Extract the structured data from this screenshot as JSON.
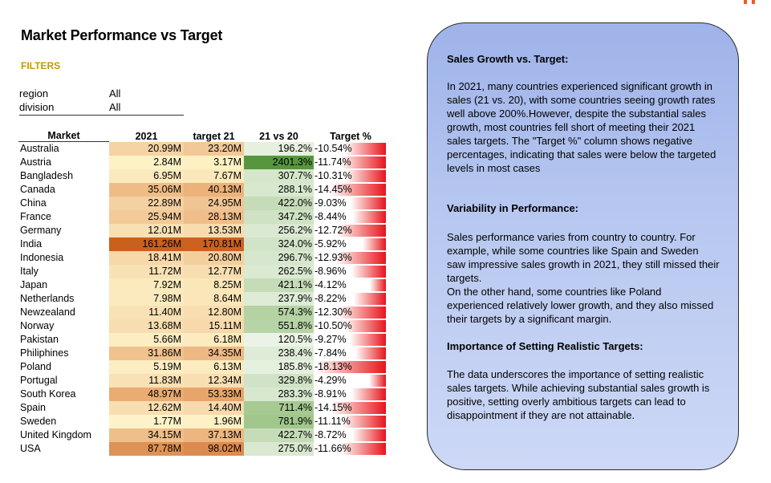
{
  "title": "Market Performance vs Target",
  "filters": {
    "label": "FILTERS",
    "items": [
      {
        "name": "region",
        "value": "All"
      },
      {
        "name": "division",
        "value": "All"
      }
    ]
  },
  "table": {
    "headers": [
      "Market",
      "2021",
      "target 21",
      "21 vs 20",
      "Target %"
    ],
    "rows": [
      {
        "market": "Australia",
        "y2021": "20.99M",
        "target": "23.20M",
        "yoy": "196.2%",
        "tpct": "-10.54%",
        "tfrac": -0.1054,
        "c1": "#f5d3a4",
        "c2": "#f2c898",
        "c3": "#e6f0df"
      },
      {
        "market": "Austria",
        "y2021": "2.84M",
        "target": "3.17M",
        "yoy": "2401.3%",
        "tpct": "-11.74%",
        "tfrac": -0.1174,
        "c1": "#fdf2c6",
        "c2": "#fdf0c2",
        "c3": "#57963f"
      },
      {
        "market": "Bangladesh",
        "y2021": "6.95M",
        "target": "7.67M",
        "yoy": "307.7%",
        "tpct": "-10.31%",
        "tfrac": -0.1031,
        "c1": "#fbeabe",
        "c2": "#fbe8ba",
        "c3": "#d5e6cb"
      },
      {
        "market": "Canada",
        "y2021": "35.06M",
        "target": "40.13M",
        "yoy": "288.1%",
        "tpct": "-14.45%",
        "tfrac": -0.1445,
        "c1": "#eebd87",
        "c2": "#ecb27a",
        "c3": "#d8e8cf"
      },
      {
        "market": "China",
        "y2021": "22.89M",
        "target": "24.95M",
        "yoy": "422.0%",
        "tpct": "-9.03%",
        "tfrac": -0.0903,
        "c1": "#f4d1a1",
        "c2": "#f1c593",
        "c3": "#c6dcb8"
      },
      {
        "market": "France",
        "y2021": "25.94M",
        "target": "28.13M",
        "yoy": "347.2%",
        "tpct": "-8.44%",
        "tfrac": -0.0844,
        "c1": "#f2ca98",
        "c2": "#efbe8b",
        "c3": "#cfe2c4"
      },
      {
        "market": "Germany",
        "y2021": "12.01M",
        "target": "13.53M",
        "yoy": "256.2%",
        "tpct": "-12.72%",
        "tfrac": -0.1272,
        "c1": "#f8e0b3",
        "c2": "#f8dcaf",
        "c3": "#dbe9d3"
      },
      {
        "market": "India",
        "y2021": "161.26M",
        "target": "170.81M",
        "yoy": "324.0%",
        "tpct": "-5.92%",
        "tfrac": -0.0592,
        "c1": "#c9601c",
        "c2": "#cb621e",
        "c3": "#d2e4c8"
      },
      {
        "market": "Indonesia",
        "y2021": "18.41M",
        "target": "20.80M",
        "yoy": "296.7%",
        "tpct": "-12.93%",
        "tfrac": -0.1293,
        "c1": "#f6d8a9",
        "c2": "#f4cf9e",
        "c3": "#d6e7cd"
      },
      {
        "market": "Italy",
        "y2021": "11.72M",
        "target": "12.77M",
        "yoy": "262.5%",
        "tpct": "-8.96%",
        "tfrac": -0.0896,
        "c1": "#f8e1b4",
        "c2": "#f8ddb0",
        "c3": "#dae9d1"
      },
      {
        "market": "Japan",
        "y2021": "7.92M",
        "target": "8.25M",
        "yoy": "421.1%",
        "tpct": "-4.12%",
        "tfrac": -0.0412,
        "c1": "#faeabd",
        "c2": "#fae7b9",
        "c3": "#c6dcb8"
      },
      {
        "market": "Netherlands",
        "y2021": "7.98M",
        "target": "8.64M",
        "yoy": "237.9%",
        "tpct": "-8.22%",
        "tfrac": -0.0822,
        "c1": "#faeabd",
        "c2": "#fae6b8",
        "c3": "#deebd6"
      },
      {
        "market": "Newzealand",
        "y2021": "11.40M",
        "target": "12.80M",
        "yoy": "574.3%",
        "tpct": "-12.30%",
        "tfrac": -0.123,
        "c1": "#f8e2b5",
        "c2": "#f8ddb0",
        "c3": "#b4d2a2"
      },
      {
        "market": "Norway",
        "y2021": "13.68M",
        "target": "15.11M",
        "yoy": "551.8%",
        "tpct": "-10.50%",
        "tfrac": -0.105,
        "c1": "#f7ddaf",
        "c2": "#f7d9ab",
        "c3": "#b7d4a6"
      },
      {
        "market": "Pakistan",
        "y2021": "5.66M",
        "target": "6.18M",
        "yoy": "120.5%",
        "tpct": "-9.27%",
        "tfrac": -0.0927,
        "c1": "#fcedc2",
        "c2": "#fcebbf",
        "c3": "#ebf3e6"
      },
      {
        "market": "Philiphines",
        "y2021": "31.86M",
        "target": "34.35M",
        "yoy": "238.4%",
        "tpct": "-7.84%",
        "tfrac": -0.0784,
        "c1": "#efc28e",
        "c2": "#eeb884",
        "c3": "#deebd6"
      },
      {
        "market": "Poland",
        "y2021": "5.19M",
        "target": "6.13M",
        "yoy": "185.8%",
        "tpct": "-18.13%",
        "tfrac": -0.1813,
        "c1": "#fcedc3",
        "c2": "#fcebbf",
        "c3": "#e6f0df"
      },
      {
        "market": "Portugal",
        "y2021": "11.83M",
        "target": "12.34M",
        "yoy": "329.8%",
        "tpct": "-4.29%",
        "tfrac": -0.0429,
        "c1": "#f8e1b4",
        "c2": "#f8deb1",
        "c3": "#d1e3c6"
      },
      {
        "market": "South Korea",
        "y2021": "48.97M",
        "target": "53.33M",
        "yoy": "283.3%",
        "tpct": "-8.91%",
        "tfrac": -0.0891,
        "c1": "#e9ac73",
        "c2": "#e7a56b",
        "c3": "#d8e8cf"
      },
      {
        "market": "Spain",
        "y2021": "12.62M",
        "target": "14.40M",
        "yoy": "711.4%",
        "tpct": "-14.15%",
        "tfrac": -0.1415,
        "c1": "#f8dfb2",
        "c2": "#f7daad",
        "c3": "#a6ca92"
      },
      {
        "market": "Sweden",
        "y2021": "1.77M",
        "target": "1.96M",
        "yoy": "781.9%",
        "tpct": "-11.11%",
        "tfrac": -0.1111,
        "c1": "#fdf3c8",
        "c2": "#fdf1c5",
        "c3": "#a1c78c"
      },
      {
        "market": "United Kingdom",
        "y2021": "34.15M",
        "target": "37.13M",
        "yoy": "422.7%",
        "tpct": "-8.72%",
        "tfrac": -0.0872,
        "c1": "#eebf8a",
        "c2": "#edb680",
        "c3": "#c6dcb8"
      },
      {
        "market": "USA",
        "y2021": "87.78M",
        "target": "98.02M",
        "yoy": "275.0%",
        "tpct": "-11.66%",
        "tfrac": -0.1166,
        "c1": "#df9256",
        "c2": "#dc8a4f",
        "c3": "#d9e8d0"
      }
    ]
  },
  "panel": {
    "s1_title": "Sales Growth vs. Target:",
    "s1_body": "In 2021, many countries experienced significant growth in sales (21 vs. 20), with some countries seeing growth rates well above 200%.However, despite the substantial sales growth, most countries fell short of meeting their 2021 sales targets. The \"Target %\" column shows negative percentages, indicating that sales were below the targeted levels in most cases",
    "s2_title": "Variability in Performance:",
    "s2_body_a": "Sales performance varies from country to country. For example, while some countries like Spain and Sweden saw impressive sales growth in 2021, they still missed their targets.",
    "s2_body_b": "On the other hand, some countries like Poland experienced relatively lower growth, and they also missed their targets by a significant margin.",
    "s3_title": "Importance of Setting Realistic Targets:",
    "s3_body": "The data underscores the importance of setting realistic sales targets. While achieving substantial sales growth is positive, setting overly ambitious targets can lead to disappointment if they are not attainable."
  },
  "colors": {
    "filters_label": "#c49a00",
    "panel_top": "#9fb3ea",
    "panel_bottom": "#cdd8f6",
    "target_bar": "#e8131c",
    "corner_accent": "#f05a28"
  }
}
